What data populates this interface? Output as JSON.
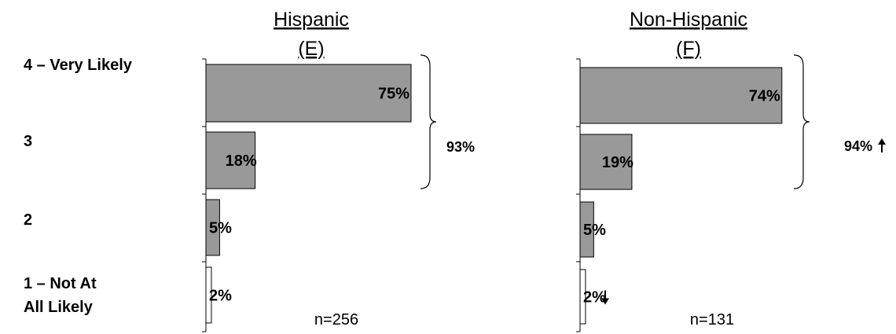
{
  "chart_data": {
    "type": "bar",
    "orientation": "horizontal",
    "categories": [
      "4 – Very Likely",
      "3",
      "2",
      "1 – Not At All Likely"
    ],
    "category_lines": [
      [
        "4 – Very Likely"
      ],
      [
        "3"
      ],
      [
        "2"
      ],
      [
        "1 – Not At",
        "All Likely"
      ]
    ],
    "xlim": [
      0,
      100
    ],
    "grid": false,
    "legend": "none",
    "panels": [
      {
        "title": "Hispanic",
        "subtitle": "(E)",
        "values": [
          75,
          18,
          5,
          2
        ],
        "labels": [
          "75%",
          "18%",
          "5%",
          "2%"
        ],
        "n_label": "n=256",
        "net": {
          "label": "93%",
          "covers": [
            "4 – Very Likely",
            "3"
          ],
          "arrow": null
        },
        "arrows": [
          null,
          null,
          null,
          null
        ]
      },
      {
        "title": "Non-Hispanic",
        "subtitle": "(F)",
        "values": [
          74,
          19,
          5,
          2
        ],
        "labels": [
          "74%",
          "19%",
          "5%",
          "2%"
        ],
        "n_label": "n=131",
        "net": {
          "label": "94%",
          "covers": [
            "4 – Very Likely",
            "3"
          ],
          "arrow": "up"
        },
        "arrows": [
          null,
          null,
          null,
          "down"
        ]
      }
    ],
    "colors": {
      "bar": "#999999",
      "bar_last": "#ffffff",
      "stroke": "#000000"
    }
  }
}
